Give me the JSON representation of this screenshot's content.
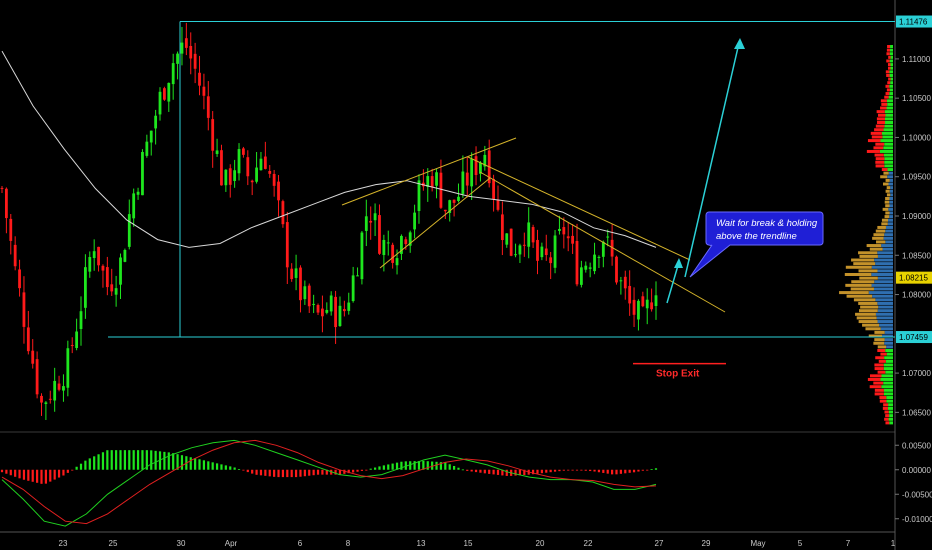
{
  "chart_data": [
    {
      "type": "candlestick",
      "title": "",
      "symbol": "",
      "xlabel": "",
      "ylabel": "",
      "ylim": [
        1.0625,
        1.1175
      ],
      "y_ticks": [
        "1.11000",
        "1.10500",
        "1.10000",
        "1.09500",
        "1.09000",
        "1.08500",
        "1.08000",
        "1.07000",
        "1.06500"
      ],
      "x_ticks": [
        "23",
        "25",
        "30",
        "Apr",
        "6",
        "8",
        "13",
        "15",
        "20",
        "22",
        "27",
        "29",
        "May",
        "5",
        "7",
        "1"
      ],
      "price_tags": {
        "box_top": "1.11476",
        "current": "1.08215",
        "box_bottom": "1.07459"
      },
      "levels": {
        "box_top": 1.11476,
        "box_bottom": 1.07459,
        "stop_exit": 1.0712
      },
      "close_path": [
        1.0935,
        1.083,
        1.0745,
        1.066,
        1.0685,
        1.071,
        1.0785,
        1.087,
        1.081,
        1.0835,
        1.0925,
        1.0985,
        1.1045,
        1.1095,
        1.112,
        1.1075,
        1.101,
        1.0935,
        1.0975,
        1.0945,
        1.0985,
        1.0915,
        1.0835,
        1.0795,
        1.077,
        1.0785,
        1.077,
        1.083,
        1.0915,
        1.0865,
        1.086,
        1.0885,
        1.0935,
        1.0955,
        1.0905,
        1.093,
        1.096,
        1.0985,
        1.0895,
        1.0855,
        1.0885,
        1.084,
        1.0845,
        1.0885,
        1.083,
        1.085,
        1.0875,
        1.0825,
        1.0785,
        1.0765,
        1.0815
      ],
      "moving_average": [
        1.111,
        1.104,
        1.0985,
        1.0935,
        1.0895,
        1.087,
        1.086,
        1.0865,
        1.0885,
        1.09,
        1.0915,
        1.093,
        1.094,
        1.0945,
        1.0935,
        1.0925,
        1.092,
        1.0915,
        1.0905,
        1.0885,
        1.0875,
        1.086
      ],
      "volume_profile_note": "",
      "annotations": {
        "callout": [
          "Wait for break & holding",
          "above the trendline"
        ],
        "stop_label": "Stop Exit"
      },
      "colors": {
        "up": "#1ee61e",
        "down": "#ff1a1a",
        "box": "#2bd0d6",
        "trendline": "#d4b32a",
        "ma": "#d8d8d8",
        "arrow": "#2bd0d6",
        "callout_bg": "#1f1fd6",
        "profile_blue": "#2f6fb0",
        "profile_gold": "#c4922a"
      }
    },
    {
      "type": "macd",
      "ylim": [
        -0.0125,
        0.0075
      ],
      "y_ticks": [
        "0.00500",
        "0.00000",
        "-0.00500",
        "-0.01000"
      ],
      "macd_line": [
        -0.002,
        -0.006,
        -0.0105,
        -0.0115,
        -0.009,
        -0.005,
        -0.002,
        0.001,
        0.003,
        0.0045,
        0.0055,
        0.006,
        0.005,
        0.0035,
        0.002,
        0.0005,
        -0.001,
        -0.0015,
        -0.001,
        0.0005,
        0.002,
        0.003,
        0.002,
        0.001,
        -0.0005,
        -0.0015,
        -0.002,
        -0.002,
        -0.0025,
        -0.004,
        -0.004,
        -0.003
      ],
      "signal_line": [
        -0.0015,
        -0.004,
        -0.0075,
        -0.0105,
        -0.011,
        -0.009,
        -0.006,
        -0.003,
        -0.0005,
        0.002,
        0.004,
        0.0055,
        0.006,
        0.005,
        0.0035,
        0.0015,
        0.0,
        -0.0012,
        -0.0018,
        -0.0012,
        0.0002,
        0.0015,
        0.0022,
        0.0018,
        0.0008,
        -0.0005,
        -0.0015,
        -0.002,
        -0.0022,
        -0.003,
        -0.0035,
        -0.0033
      ]
    }
  ]
}
